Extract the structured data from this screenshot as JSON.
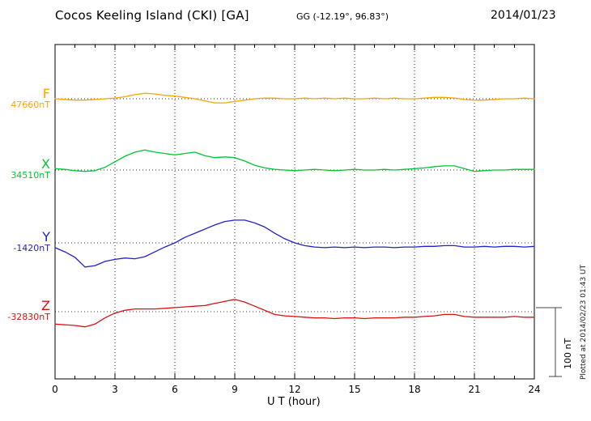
{
  "header": {
    "title": "Cocos Keeling Island (CKI)  [GA]",
    "coords": "GG (-12.19°,  96.83°)",
    "date": "2014/01/23"
  },
  "footer": {
    "xlabel": "U T (hour)"
  },
  "scalebar": {
    "label": "100 nT"
  },
  "plotted_at": "Plotted at 2014/02/23 01:43 UT",
  "chart_data": {
    "type": "line",
    "title": "Cocos Keeling Island (CKI) [GA] magnetogram 2014/01/23",
    "xlabel": "U T (hour)",
    "x_range": [
      0,
      24
    ],
    "x_ticks": [
      0,
      3,
      6,
      9,
      12,
      15,
      18,
      21,
      24
    ],
    "x_step_hours": 0.5,
    "scale_label": "100 nT",
    "scale_nT": 100,
    "grid": "dotted",
    "series": [
      {
        "name": "F",
        "baseline_label": "47660nT",
        "baseline_nT": 47660,
        "color": "#FFA500",
        "offsets_nT": [
          0,
          -1,
          -2,
          -2,
          -1,
          0,
          1,
          3,
          6,
          8,
          7,
          5,
          4,
          2,
          0,
          -3,
          -6,
          -6,
          -4,
          -2,
          0,
          1,
          1,
          0,
          0,
          1,
          0,
          1,
          0,
          1,
          0,
          0,
          1,
          0,
          1,
          0,
          0,
          1,
          2,
          2,
          1,
          -1,
          -2,
          -2,
          -1,
          0,
          0,
          1,
          0
        ]
      },
      {
        "name": "X",
        "baseline_label": "34510nT",
        "baseline_nT": 34510,
        "color": "#00C832",
        "offsets_nT": [
          2,
          1,
          -1,
          -2,
          -1,
          4,
          12,
          20,
          26,
          29,
          26,
          24,
          22,
          24,
          26,
          21,
          18,
          19,
          18,
          13,
          7,
          3,
          1,
          0,
          -1,
          0,
          1,
          0,
          -1,
          0,
          1,
          0,
          0,
          1,
          0,
          1,
          2,
          3,
          5,
          6,
          6,
          2,
          -2,
          -1,
          0,
          0,
          1,
          1,
          1
        ]
      },
      {
        "name": "Y",
        "baseline_label": "-1420nT",
        "baseline_nT": -1420,
        "color": "#2222CC",
        "offsets_nT": [
          -7,
          -13,
          -21,
          -35,
          -33,
          -27,
          -24,
          -22,
          -23,
          -20,
          -13,
          -6,
          0,
          8,
          14,
          20,
          26,
          31,
          33,
          33,
          29,
          23,
          14,
          6,
          0,
          -4,
          -6,
          -7,
          -6,
          -7,
          -6,
          -7,
          -6,
          -6,
          -7,
          -6,
          -6,
          -5,
          -5,
          -4,
          -4,
          -6,
          -6,
          -5,
          -6,
          -5,
          -5,
          -6,
          -5
        ]
      },
      {
        "name": "Z",
        "baseline_label": "-32830nT",
        "baseline_nT": -32830,
        "color": "#DD1111",
        "offsets_nT": [
          -18,
          -19,
          -20,
          -22,
          -18,
          -9,
          -2,
          2,
          4,
          4,
          4,
          5,
          6,
          7,
          8,
          9,
          12,
          15,
          18,
          14,
          8,
          2,
          -4,
          -6,
          -7,
          -8,
          -9,
          -9,
          -10,
          -9,
          -9,
          -10,
          -9,
          -9,
          -9,
          -8,
          -8,
          -7,
          -6,
          -4,
          -4,
          -7,
          -8,
          -8,
          -8,
          -8,
          -7,
          -8,
          -8
        ]
      }
    ]
  }
}
